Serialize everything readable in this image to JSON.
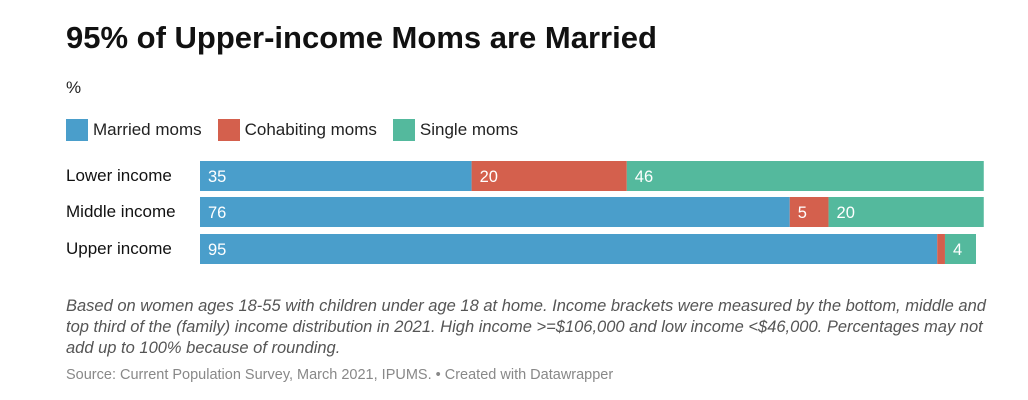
{
  "title": "95% of Upper-income Moms are Married",
  "subtitle": "%",
  "legend": {
    "items": [
      {
        "label": "Married moms",
        "color": "#4a9ecb"
      },
      {
        "label": "Cohabiting moms",
        "color": "#d4604d"
      },
      {
        "label": "Single moms",
        "color": "#54b99d"
      }
    ]
  },
  "notes": "Based on women ages 18-55 with children under age 18 at home. Income brackets were measured by the bottom, middle and top third of the (family) income distribution in 2021. High income >=$106,000 and low income <$46,000. Percentages may not add up to 100% because of rounding.",
  "source": "Source: Current Population Survey, March 2021, IPUMS. • Created with Datawrapper",
  "chart_data": {
    "type": "bar",
    "orientation": "horizontal",
    "stacked": true,
    "categories": [
      "Lower income",
      "Middle income",
      "Upper income"
    ],
    "series": [
      {
        "name": "Married moms",
        "color": "#4a9ecb",
        "values": [
          35,
          76,
          95
        ],
        "labels": [
          "35",
          "76",
          "95"
        ]
      },
      {
        "name": "Cohabiting moms",
        "color": "#d4604d",
        "values": [
          20,
          5,
          1
        ],
        "labels": [
          "20",
          "5",
          ""
        ]
      },
      {
        "name": "Single moms",
        "color": "#54b99d",
        "values": [
          46,
          20,
          4
        ],
        "labels": [
          "46",
          "20",
          "4"
        ]
      }
    ],
    "xlim": [
      0,
      100
    ],
    "grid": false,
    "legend_position": "top-left"
  }
}
